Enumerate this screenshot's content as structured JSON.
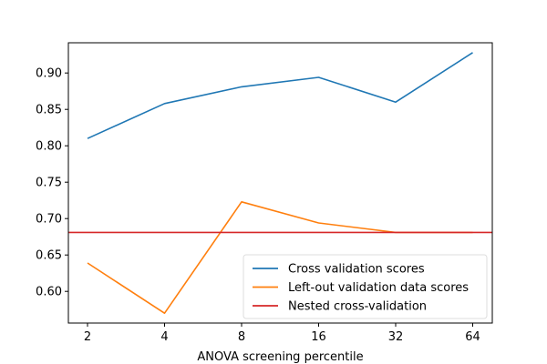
{
  "chart_data": {
    "type": "line",
    "title": "",
    "xlabel": "ANOVA screening percentile",
    "ylabel": "",
    "x": [
      "2",
      "4",
      "8",
      "16",
      "32",
      "64"
    ],
    "ylim": [
      0.5565,
      0.9415
    ],
    "yticks": [
      0.6,
      0.65,
      0.7,
      0.75,
      0.8,
      0.85,
      0.9
    ],
    "ytick_labels": [
      "0.60",
      "0.65",
      "0.70",
      "0.75",
      "0.80",
      "0.85",
      "0.90"
    ],
    "grid": false,
    "legend_position": "lower-right",
    "series": [
      {
        "name": "Cross validation scores",
        "color": "#1f77b4",
        "values": [
          0.81,
          0.858,
          0.881,
          0.894,
          0.86,
          0.928
        ]
      },
      {
        "name": "Left-out validation data scores",
        "color": "#ff7f0e",
        "values": [
          0.639,
          0.57,
          0.723,
          0.694,
          0.681,
          0.681
        ]
      }
    ],
    "hlines": [
      {
        "name": "Nested cross-validation",
        "color": "#d62728",
        "value": 0.681
      }
    ]
  }
}
